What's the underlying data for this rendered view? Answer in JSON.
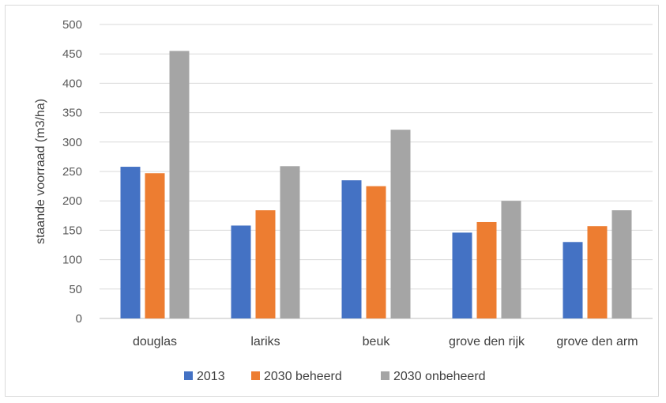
{
  "chart_data": {
    "type": "bar",
    "title": "",
    "xlabel": "",
    "ylabel": "staande voorraad (m3/ha)",
    "ylim": [
      0,
      500
    ],
    "yticks": [
      0,
      50,
      100,
      150,
      200,
      250,
      300,
      350,
      400,
      450,
      500
    ],
    "grid": true,
    "legend_position": "bottom",
    "categories": [
      "douglas",
      "lariks",
      "beuk",
      "grove den rijk",
      "grove den arm"
    ],
    "series": [
      {
        "name": "2013",
        "color": "#4472c4",
        "values": [
          258,
          158,
          235,
          146,
          130
        ]
      },
      {
        "name": "2030 beheerd",
        "color": "#ed7d31",
        "values": [
          247,
          184,
          225,
          164,
          157
        ]
      },
      {
        "name": "2030 onbeheerd",
        "color": "#a5a5a5",
        "values": [
          455,
          259,
          321,
          200,
          184
        ]
      }
    ]
  }
}
